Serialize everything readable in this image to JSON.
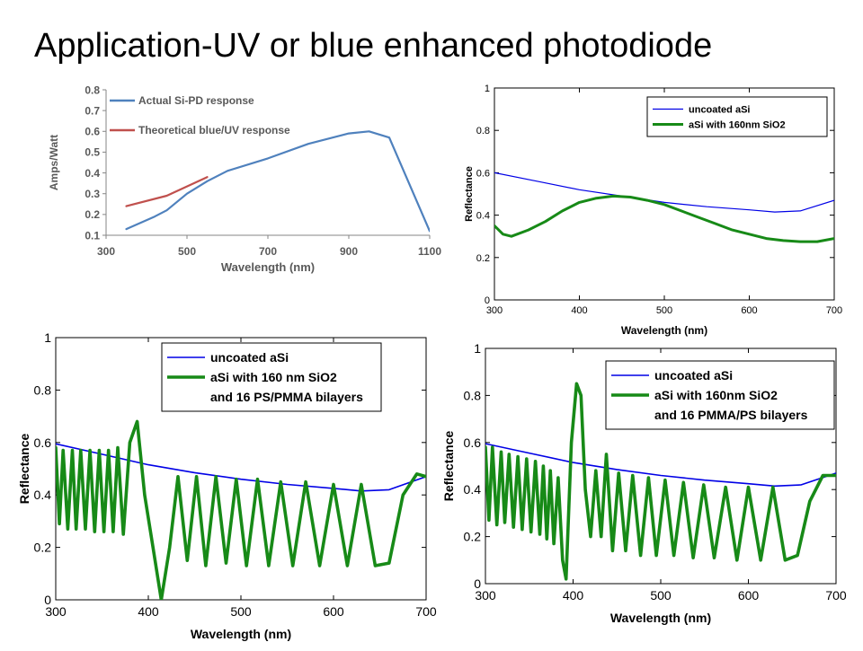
{
  "slide_title": "Application-UV or blue enhanced photodiode",
  "colors": {
    "matlab_blue": "#0000e6",
    "matlab_green": "#178a17",
    "excel_blue": "#4f81bd",
    "excel_red": "#c0504d"
  },
  "chart_data": [
    {
      "type": "line",
      "xlabel": "Wavelength (nm)",
      "ylabel": "Amps/Watt",
      "xlim": [
        300,
        1100
      ],
      "ylim": [
        0.1,
        0.8
      ],
      "xticks": [
        300,
        500,
        700,
        900,
        1100
      ],
      "yticks": [
        0.1,
        0.2,
        0.3,
        0.4,
        0.5,
        0.6,
        0.7,
        0.8
      ],
      "legend_position": "top-left",
      "grid": false,
      "series": [
        {
          "name": "Actual Si-PD response",
          "color": "#4f81bd",
          "x": [
            350,
            420,
            450,
            500,
            550,
            600,
            700,
            800,
            900,
            950,
            1000,
            1100
          ],
          "y": [
            0.13,
            0.19,
            0.22,
            0.3,
            0.36,
            0.41,
            0.47,
            0.54,
            0.59,
            0.6,
            0.57,
            0.12
          ]
        },
        {
          "name": "Theoretical blue/UV response",
          "color": "#c0504d",
          "x": [
            350,
            450,
            550
          ],
          "y": [
            0.24,
            0.29,
            0.38
          ]
        }
      ]
    },
    {
      "type": "line",
      "xlabel": "Wavelength (nm)",
      "ylabel": "Reflectance",
      "xlim": [
        300,
        700
      ],
      "ylim": [
        0,
        1
      ],
      "xticks": [
        300,
        400,
        500,
        600,
        700
      ],
      "yticks": [
        0,
        0.2,
        0.4,
        0.6,
        0.8,
        1
      ],
      "legend_position": "top-right",
      "grid": false,
      "series": [
        {
          "name": "uncoated aSi",
          "color": "#0000e6",
          "x": [
            300,
            350,
            400,
            450,
            500,
            550,
            600,
            630,
            660,
            700
          ],
          "y": [
            0.6,
            0.56,
            0.52,
            0.49,
            0.46,
            0.44,
            0.425,
            0.415,
            0.42,
            0.47
          ]
        },
        {
          "name": "aSi with 160nm SiO2",
          "color": "#178a17",
          "x": [
            300,
            310,
            320,
            340,
            360,
            380,
            400,
            420,
            440,
            460,
            480,
            500,
            520,
            540,
            560,
            580,
            600,
            620,
            640,
            660,
            680,
            700
          ],
          "y": [
            0.35,
            0.31,
            0.3,
            0.33,
            0.37,
            0.42,
            0.46,
            0.48,
            0.49,
            0.485,
            0.47,
            0.45,
            0.42,
            0.39,
            0.36,
            0.33,
            0.31,
            0.29,
            0.28,
            0.275,
            0.275,
            0.29
          ]
        }
      ]
    },
    {
      "type": "line",
      "xlabel": "Wavelength (nm)",
      "ylabel": "Reflectance",
      "xlim": [
        300,
        700
      ],
      "ylim": [
        0,
        1
      ],
      "xticks": [
        300,
        400,
        500,
        600,
        700
      ],
      "yticks": [
        0,
        0.2,
        0.4,
        0.6,
        0.8,
        1
      ],
      "legend_position": "top-right",
      "grid": false,
      "series": [
        {
          "name": "uncoated aSi",
          "color": "#0000e6",
          "x": [
            300,
            350,
            400,
            450,
            500,
            550,
            600,
            630,
            660,
            700
          ],
          "y": [
            0.595,
            0.555,
            0.515,
            0.485,
            0.46,
            0.44,
            0.425,
            0.415,
            0.42,
            0.47
          ]
        },
        {
          "name": "aSi with 160 nm SiO2\nand 16 PS/PMMA bilayers",
          "color": "#178a17",
          "x": [
            300,
            304,
            308,
            313,
            318,
            322,
            327,
            332,
            337,
            342,
            347,
            352,
            357,
            362,
            367,
            373,
            380,
            388,
            396,
            405,
            414,
            423,
            432,
            442,
            452,
            462,
            473,
            484,
            495,
            506,
            518,
            530,
            543,
            556,
            570,
            585,
            600,
            615,
            630,
            645,
            660,
            675,
            690,
            700
          ],
          "y": [
            0.58,
            0.29,
            0.57,
            0.27,
            0.57,
            0.27,
            0.57,
            0.27,
            0.57,
            0.26,
            0.57,
            0.26,
            0.57,
            0.26,
            0.58,
            0.25,
            0.6,
            0.68,
            0.4,
            0.2,
            0.0,
            0.2,
            0.47,
            0.15,
            0.47,
            0.13,
            0.47,
            0.14,
            0.46,
            0.13,
            0.46,
            0.13,
            0.45,
            0.13,
            0.45,
            0.13,
            0.44,
            0.13,
            0.44,
            0.13,
            0.14,
            0.4,
            0.48,
            0.47
          ]
        }
      ]
    },
    {
      "type": "line",
      "xlabel": "Wavelength (nm)",
      "ylabel": "Reflectance",
      "xlim": [
        300,
        700
      ],
      "ylim": [
        0,
        1
      ],
      "xticks": [
        300,
        400,
        500,
        600,
        700
      ],
      "yticks": [
        0,
        0.2,
        0.4,
        0.6,
        0.8,
        1
      ],
      "legend_position": "top-right",
      "grid": false,
      "series": [
        {
          "name": "uncoated aSi",
          "color": "#0000e6",
          "x": [
            300,
            350,
            400,
            450,
            500,
            550,
            600,
            630,
            660,
            700
          ],
          "y": [
            0.595,
            0.555,
            0.515,
            0.485,
            0.46,
            0.44,
            0.425,
            0.415,
            0.42,
            0.47
          ]
        },
        {
          "name": "aSi with 160nm SiO2\nand 16 PMMA/PS bilayers",
          "color": "#178a17",
          "x": [
            300,
            304,
            308,
            313,
            318,
            322,
            327,
            332,
            337,
            342,
            347,
            352,
            357,
            362,
            366,
            370,
            374,
            378,
            383,
            388,
            392,
            398,
            404,
            409,
            414,
            420,
            426,
            432,
            438,
            445,
            452,
            460,
            468,
            477,
            486,
            495,
            505,
            515,
            526,
            537,
            549,
            561,
            574,
            587,
            600,
            614,
            628,
            642,
            656,
            670,
            685,
            700
          ],
          "y": [
            0.58,
            0.27,
            0.58,
            0.25,
            0.56,
            0.26,
            0.55,
            0.24,
            0.54,
            0.23,
            0.53,
            0.22,
            0.52,
            0.21,
            0.5,
            0.19,
            0.48,
            0.17,
            0.45,
            0.1,
            0.02,
            0.6,
            0.85,
            0.8,
            0.4,
            0.2,
            0.48,
            0.2,
            0.55,
            0.14,
            0.47,
            0.14,
            0.46,
            0.12,
            0.45,
            0.12,
            0.44,
            0.12,
            0.43,
            0.11,
            0.42,
            0.11,
            0.41,
            0.1,
            0.41,
            0.1,
            0.41,
            0.1,
            0.12,
            0.35,
            0.46,
            0.46
          ]
        }
      ]
    }
  ]
}
